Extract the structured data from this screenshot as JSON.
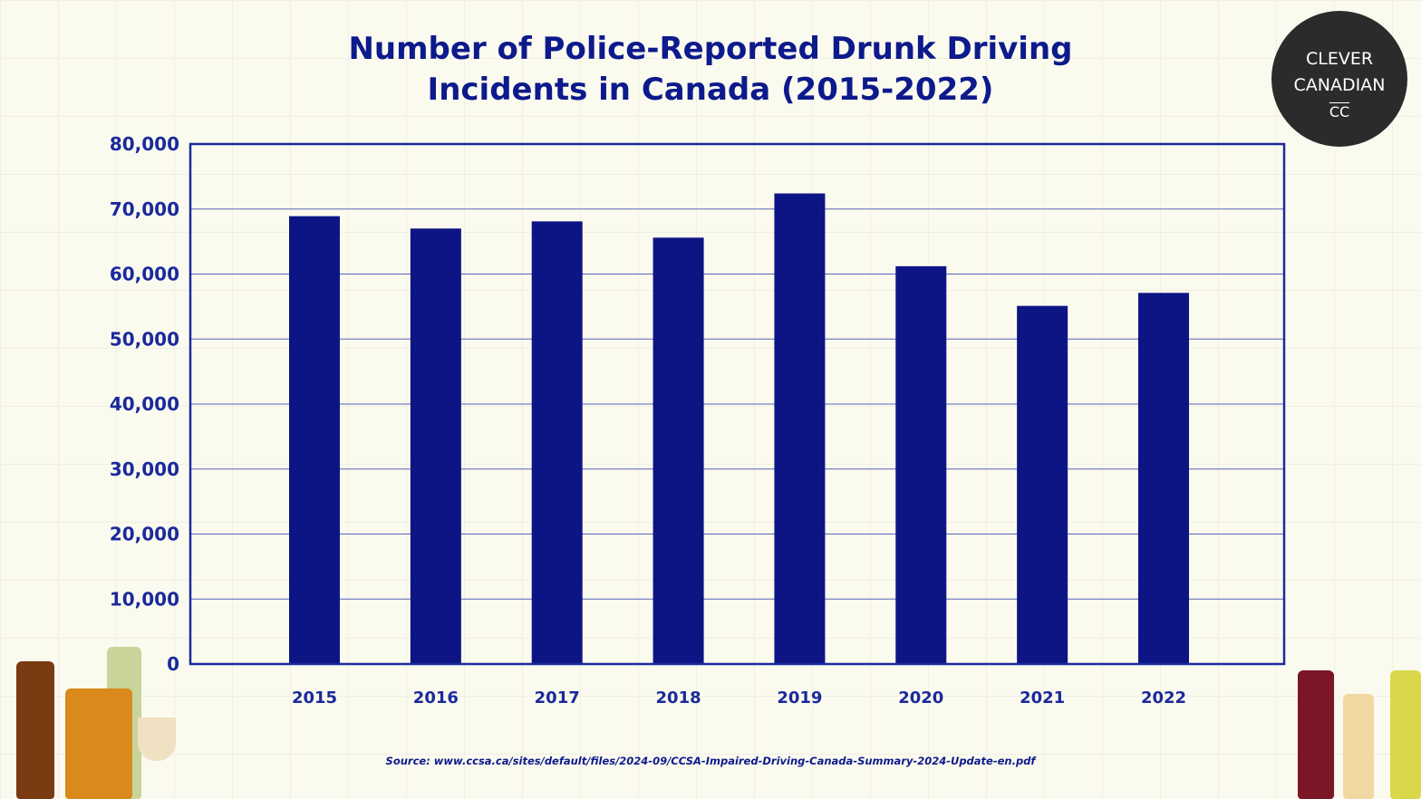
{
  "chart_data": {
    "type": "bar",
    "title": "Number of Police-Reported Drunk Driving Incidents in Canada (2015-2022)",
    "title_lines": [
      "Number of Police-Reported Drunk Driving",
      "Incidents in Canada (2015-2022)"
    ],
    "categories": [
      "2015",
      "2016",
      "2017",
      "2018",
      "2019",
      "2020",
      "2021",
      "2022"
    ],
    "values": [
      68900,
      67000,
      68100,
      65600,
      72400,
      61200,
      55100,
      57100
    ],
    "ylim": [
      0,
      80000
    ],
    "yticks": [
      0,
      10000,
      20000,
      30000,
      40000,
      50000,
      60000,
      70000,
      80000
    ],
    "ytick_labels": [
      "0",
      "10,000",
      "20,000",
      "30,000",
      "40,000",
      "50,000",
      "60,000",
      "70,000",
      "80,000"
    ],
    "xlabel": "",
    "ylabel": "",
    "grid": "horizontal",
    "legend": "none",
    "bar_color": "#0d1584",
    "axis_color": "#1a2a9c"
  },
  "source": "Source: www.ccsa.ca/sites/default/files/2024-09/CCSA-Impaired-Driving-Canada-Summary-2024-Update-en.pdf",
  "logo": {
    "line1": "CLEVER",
    "line2": "CANADIAN",
    "mark": "CC"
  }
}
